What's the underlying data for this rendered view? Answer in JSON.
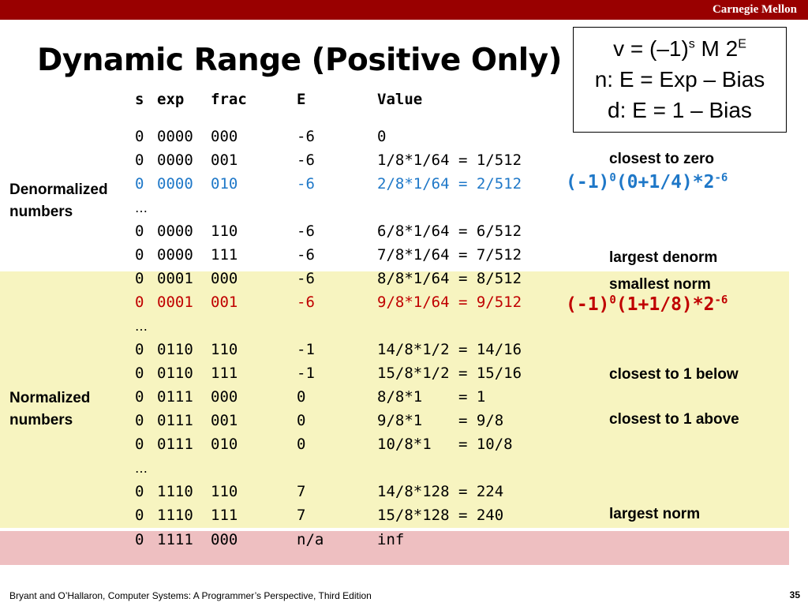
{
  "header": {
    "university": "Carnegie Mellon"
  },
  "slide": {
    "title": "Dynamic Range (Positive Only)"
  },
  "formula_box": {
    "line1_prefix": "v = (–1)",
    "line1_sup1": "s",
    "line1_mid": " M 2",
    "line1_sup2": "E",
    "line2": "n: E = Exp – Bias",
    "line3": "d: E = 1 – Bias"
  },
  "columns": {
    "s": "s",
    "exp": "exp",
    "frac": "frac",
    "E": "E",
    "value": "Value"
  },
  "rows": [
    {
      "s": "0",
      "exp": "0000",
      "frac": "000",
      "E": "-6",
      "value": "0"
    },
    {
      "s": "0",
      "exp": "0000",
      "frac": "001",
      "E": "-6",
      "value": "1/8*1/64 = 1/512"
    },
    {
      "s": "0",
      "exp": "0000",
      "frac": "010",
      "E": "-6",
      "value": "2/8*1/64 = 2/512"
    },
    {
      "s": "0",
      "exp": "0000",
      "frac": "110",
      "E": "-6",
      "value": "6/8*1/64 = 6/512"
    },
    {
      "s": "0",
      "exp": "0000",
      "frac": "111",
      "E": "-6",
      "value": "7/8*1/64 = 7/512"
    },
    {
      "s": "0",
      "exp": "0001",
      "frac": "000",
      "E": "-6",
      "value": "8/8*1/64 = 8/512"
    },
    {
      "s": "0",
      "exp": "0001",
      "frac": "001",
      "E": "-6",
      "value": "9/8*1/64 = 9/512"
    },
    {
      "s": "0",
      "exp": "0110",
      "frac": "110",
      "E": "-1",
      "value": "14/8*1/2 = 14/16"
    },
    {
      "s": "0",
      "exp": "0110",
      "frac": "111",
      "E": "-1",
      "value": "15/8*1/2 = 15/16"
    },
    {
      "s": "0",
      "exp": "0111",
      "frac": "000",
      "E": "0",
      "value": "8/8*1    = 1"
    },
    {
      "s": "0",
      "exp": "0111",
      "frac": "001",
      "E": "0",
      "value": "9/8*1    = 9/8"
    },
    {
      "s": "0",
      "exp": "0111",
      "frac": "010",
      "E": "0",
      "value": "10/8*1   = 10/8"
    },
    {
      "s": "0",
      "exp": "1110",
      "frac": "110",
      "E": "7",
      "value": "14/8*128 = 224"
    },
    {
      "s": "0",
      "exp": "1110",
      "frac": "111",
      "E": "7",
      "value": "15/8*128 = 240"
    },
    {
      "s": "0",
      "exp": "1111",
      "frac": "000",
      "E": "n/a",
      "value": "inf"
    }
  ],
  "ellipsis": "…",
  "side_labels": {
    "denormalized": "Denormalized\nnumbers",
    "normalized": "Normalized\nnumbers"
  },
  "notes": {
    "closest_to_zero": "closest to zero",
    "largest_denorm": "largest denorm",
    "smallest_norm": "smallest norm",
    "closest_to_1_below": "closest to 1 below",
    "closest_to_1_above": "closest to 1 above",
    "largest_norm": "largest norm"
  },
  "expr_denorm": {
    "base": "(-1)",
    "sup1": "0",
    "mid": "(0+1/4)*2",
    "sup2": "-6"
  },
  "expr_norm": {
    "base": "(-1)",
    "sup1": "0",
    "mid": "(1+1/8)*2",
    "sup2": "-6"
  },
  "footer": {
    "citation": "Bryant and O’Hallaron, Computer Systems: A Programmer’s Perspective, Third Edition",
    "page": "35"
  },
  "colors": {
    "brand_bar": "#990000",
    "blue_highlight": "#1f78c8",
    "red_highlight": "#c00000",
    "normalized_band": "#f7f4c0",
    "special_band": "#eebfc1"
  }
}
